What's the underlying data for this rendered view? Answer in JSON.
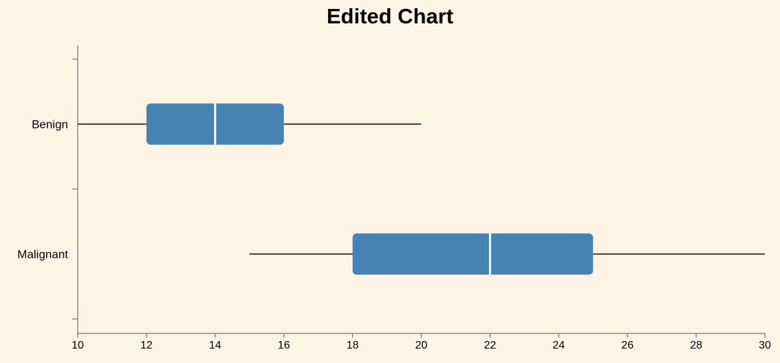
{
  "chart_data": {
    "type": "boxplot",
    "title": "Edited Chart",
    "xlabel": "",
    "ylabel": "",
    "xlim": [
      10,
      30
    ],
    "x_ticks": [
      "10",
      "12",
      "14",
      "16",
      "18",
      "20",
      "22",
      "24",
      "26",
      "28",
      "30"
    ],
    "categories": [
      "Benign",
      "Malignant"
    ],
    "boxes": [
      {
        "category": "Benign",
        "min": 10,
        "q1": 12,
        "median": 14,
        "q3": 16,
        "max": 20
      },
      {
        "category": "Malignant",
        "min": 15,
        "q1": 18,
        "median": 22,
        "q3": 25,
        "max": 30
      }
    ],
    "box_color": "#4682b4",
    "median_color": "#ffffff",
    "whisker_color": "#000000",
    "background_color": "#fdf4e6",
    "grid": false
  }
}
